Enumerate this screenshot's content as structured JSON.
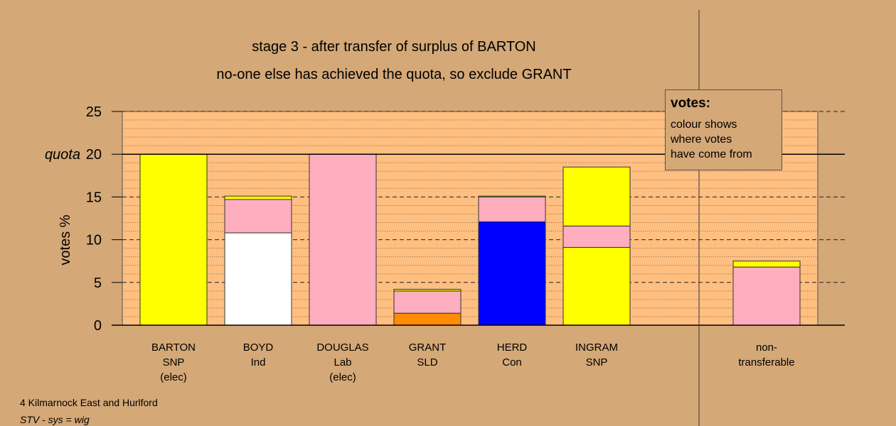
{
  "chart_data": {
    "type": "bar",
    "stacked": true,
    "title": "stage 3 - after transfer of surplus of BARTON",
    "subtitle": "no-one else has achieved the quota, so exclude GRANT",
    "ylabel": "votes %",
    "ylim": [
      0,
      25
    ],
    "yticks": [
      "0",
      "5",
      "10",
      "15",
      "20",
      "25"
    ],
    "quota_value": 20,
    "quota_label": "quota",
    "grid": true,
    "categories": [
      {
        "name": "BARTON",
        "party": "SNP",
        "note": "(elec)"
      },
      {
        "name": "BOYD",
        "party": "Ind",
        "note": ""
      },
      {
        "name": "DOUGLAS",
        "party": "Lab",
        "note": "(elec)"
      },
      {
        "name": "GRANT",
        "party": "SLD",
        "note": ""
      },
      {
        "name": "HERD",
        "party": "Con",
        "note": ""
      },
      {
        "name": "INGRAM",
        "party": "SNP",
        "note": ""
      }
    ],
    "nontransferable_label": [
      "non-",
      "transferable"
    ],
    "bars": [
      {
        "segments": [
          {
            "value": 20.0,
            "color": "#ffff00"
          }
        ]
      },
      {
        "segments": [
          {
            "value": 10.8,
            "color": "#ffffff"
          },
          {
            "value": 3.9,
            "color": "#ffaec0"
          },
          {
            "value": 0.4,
            "color": "#ffff00"
          }
        ]
      },
      {
        "segments": [
          {
            "value": 20.0,
            "color": "#ffaec0"
          }
        ]
      },
      {
        "segments": [
          {
            "value": 1.4,
            "color": "#ff8c00"
          },
          {
            "value": 2.6,
            "color": "#ffaec0"
          },
          {
            "value": 0.2,
            "color": "#ffff00"
          }
        ]
      },
      {
        "segments": [
          {
            "value": 12.1,
            "color": "#0000ff"
          },
          {
            "value": 2.9,
            "color": "#ffaec0"
          },
          {
            "value": 0.1,
            "color": "#ffff00"
          }
        ]
      },
      {
        "segments": [
          {
            "value": 9.1,
            "color": "#ffff00"
          },
          {
            "value": 2.5,
            "color": "#ffaec0"
          },
          {
            "value": 6.9,
            "color": "#ffff00"
          }
        ]
      }
    ],
    "nontransferable": {
      "segments": [
        {
          "value": 6.8,
          "color": "#ffaec0"
        },
        {
          "value": 0.7,
          "color": "#ffff00"
        }
      ]
    },
    "plot_bg": "#ffbf80",
    "page_bg": "#d4a877"
  },
  "legend": {
    "title": "votes:",
    "lines": [
      "colour shows",
      "where votes",
      "have come from"
    ]
  },
  "footer": {
    "line1": "4 Kilmarnock East and Hurlford",
    "line2": "STV - sys = wig"
  }
}
